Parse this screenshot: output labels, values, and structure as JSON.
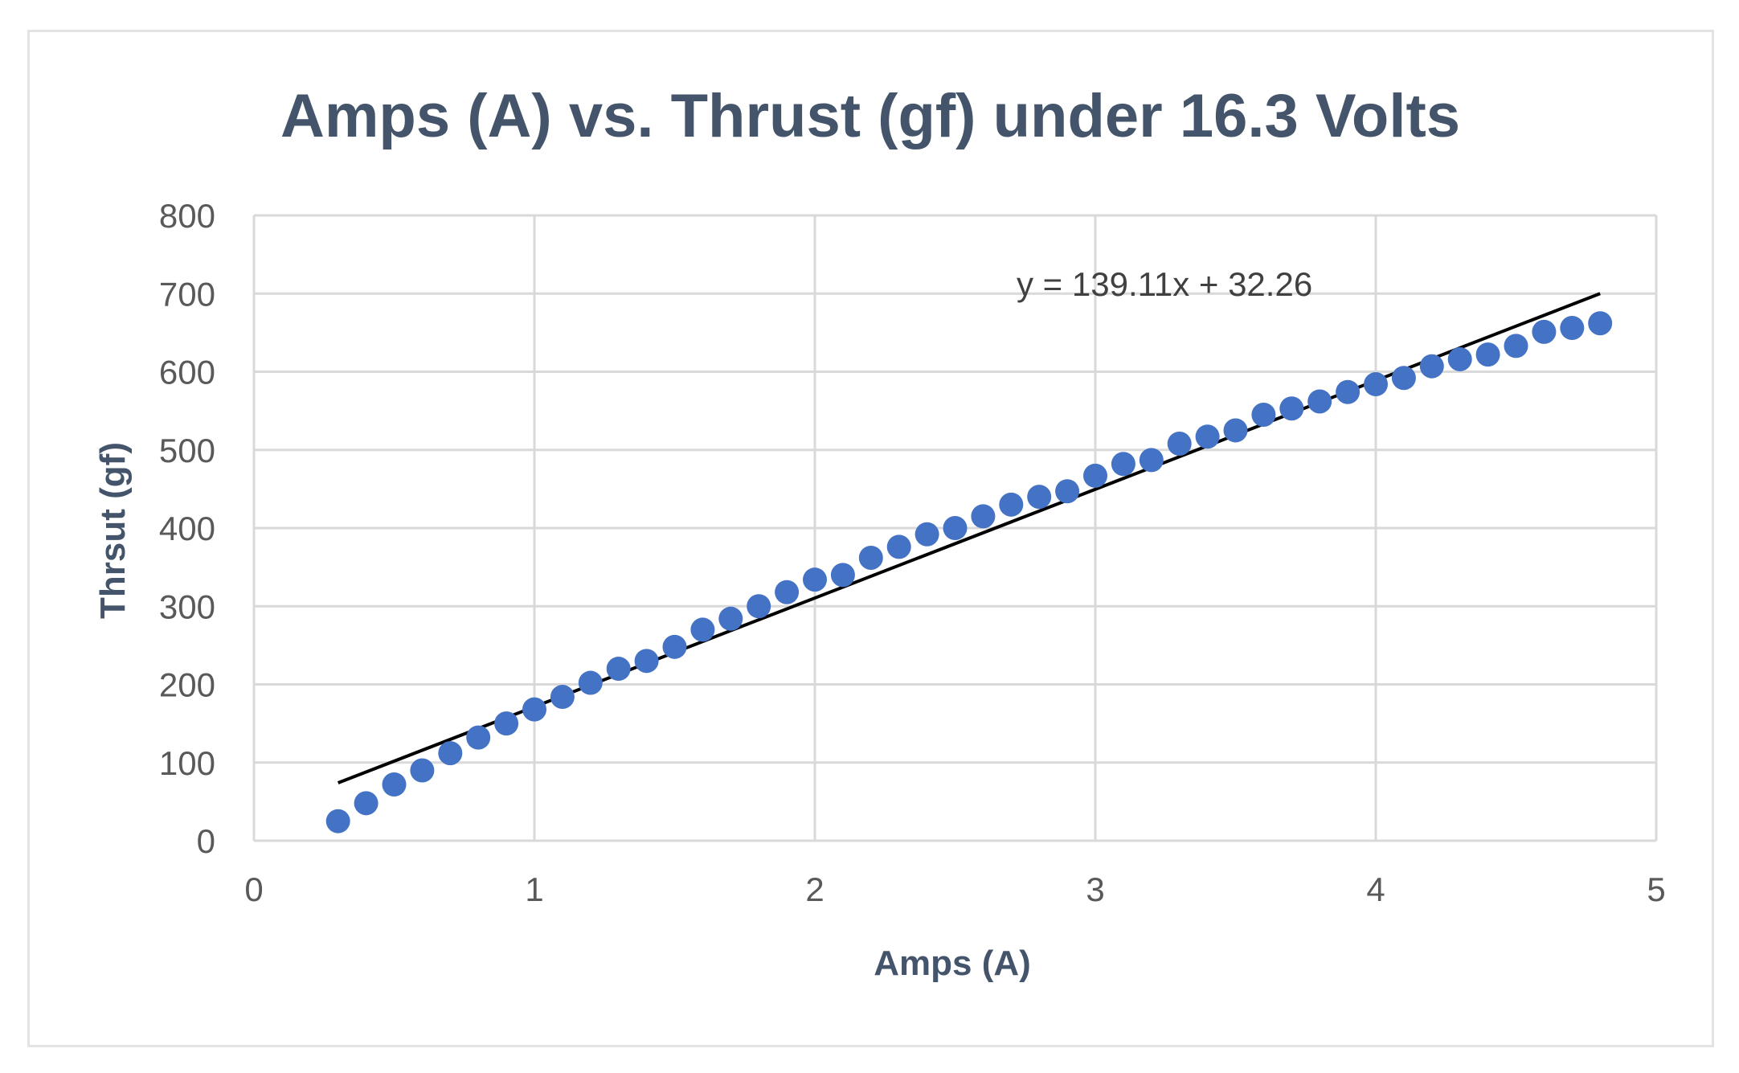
{
  "chart_data": {
    "type": "scatter",
    "title": "Amps (A) vs. Thrust (gf) under 16.3 Volts",
    "xlabel": "Amps (A)",
    "ylabel": "Thrsut (gf)",
    "xlim": [
      0,
      5
    ],
    "ylim": [
      0,
      800
    ],
    "x_ticks": [
      "0",
      "1",
      "2",
      "3",
      "4",
      "5"
    ],
    "y_ticks": [
      "0",
      "100",
      "200",
      "300",
      "400",
      "500",
      "600",
      "700",
      "800"
    ],
    "grid": true,
    "legend": "none",
    "marker_color": "#4472c4",
    "trendline_color": "#000000",
    "series": [
      {
        "x": [
          0.3,
          0.4,
          0.5,
          0.6,
          0.7,
          0.8,
          0.9,
          1.0,
          1.1,
          1.2,
          1.3,
          1.4,
          1.5,
          1.6,
          1.7,
          1.8,
          1.9,
          2.0,
          2.1,
          2.2,
          2.3,
          2.4,
          2.5,
          2.6,
          2.7,
          2.8,
          2.9,
          3.0,
          3.1,
          3.2,
          3.3,
          3.4,
          3.5,
          3.6,
          3.7,
          3.8,
          3.9,
          4.0,
          4.1,
          4.2,
          4.3,
          4.4,
          4.5,
          4.6,
          4.7,
          4.8
        ],
        "y": [
          25,
          48,
          72,
          90,
          112,
          132,
          150,
          168,
          184,
          202,
          220,
          230,
          248,
          270,
          284,
          300,
          318,
          334,
          340,
          362,
          376,
          392,
          400,
          415,
          430,
          440,
          447,
          467,
          482,
          487,
          508,
          517,
          525,
          545,
          553,
          562,
          574,
          584,
          592,
          607,
          616,
          622,
          633,
          651,
          656,
          662
        ]
      }
    ],
    "trendline": {
      "equation": "y = 139.11x + 32.26",
      "slope": 139.11,
      "intercept": 32.26,
      "x_range": [
        0.3,
        4.8
      ]
    }
  }
}
